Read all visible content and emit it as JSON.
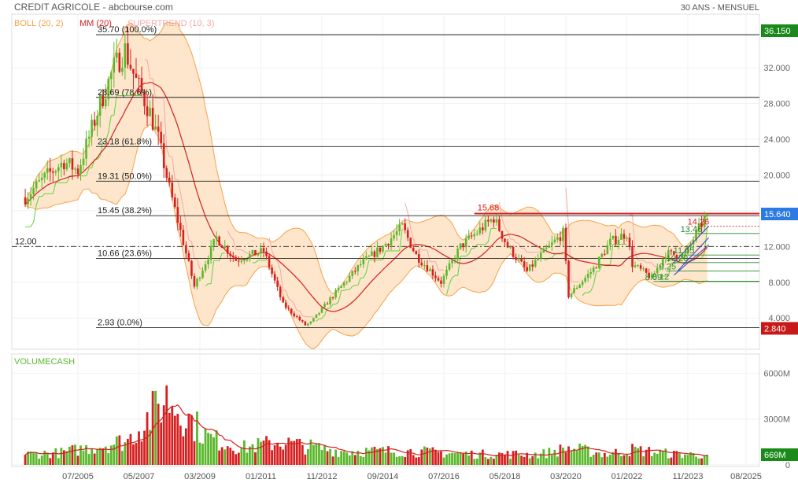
{
  "header": {
    "title": "CREDIT AGRICOLE - abcbourse.com",
    "period": "30 ANS - MENSUEL"
  },
  "legend": {
    "boll": "BOLL (20, 2)",
    "mm": "MM (20)",
    "supertrend": "SUPERTREND (10, 3)",
    "volume": "VOLUMECASH"
  },
  "colors": {
    "up": "#5cb82c",
    "down": "#d62020",
    "boll_band": "#f5a34a",
    "boll_fill": "#fde6cc",
    "mm": "#d62020",
    "supertrend_low": "#5cd43c",
    "supertrend_high": "#f3a9a9",
    "volume_ma": "#d62020",
    "last_price": "#2a8a2a",
    "min_price": "#c81818",
    "resistance": "#d62020",
    "channel": "#2a3fd6"
  },
  "chart_data": [
    {
      "type": "candlestick",
      "title": "CREDIT AGRICOLE - abcbourse.com",
      "subtitle": "30 ANS - MENSUEL",
      "x_ticks": [
        "07/2005",
        "05/2007",
        "03/2009",
        "01/2011",
        "11/2012",
        "09/2014",
        "07/2016",
        "05/2018",
        "03/2020",
        "01/2022",
        "11/2023",
        "08/2025"
      ],
      "y_ticks": [
        "4.000",
        "8.000",
        "12.000",
        "16.000",
        "20.000",
        "24.000",
        "28.000",
        "32.000"
      ],
      "ylim": [
        0.5,
        38
      ],
      "last_value": "15.640",
      "max_value": "36.150",
      "min_value": "2.840",
      "horizontal_levels": [
        {
          "label": "12.00",
          "value": 12.0
        }
      ],
      "fibonacci": [
        {
          "label": "35.70 (100.0%)",
          "value": 35.7
        },
        {
          "label": "28.69 (78.6%)",
          "value": 28.69
        },
        {
          "label": "23.18 (61.8%)",
          "value": 23.18
        },
        {
          "label": "19.31 (50.0%)",
          "value": 19.31
        },
        {
          "label": "15.45 (38.2%)",
          "value": 15.45
        },
        {
          "label": "10.66 (23.6%)",
          "value": 10.66
        },
        {
          "label": "2.93 (0.0%)",
          "value": 2.93
        }
      ],
      "resistance": {
        "label": "15.68",
        "value": 15.68,
        "from": "06/2017"
      },
      "annotations": [
        {
          "label": "14.26",
          "value": 14.26
        },
        {
          "label": "13.46",
          "value": 13.46
        },
        {
          "label": "11.05",
          "value": 11.05
        },
        {
          "label": "10.20",
          "value": 10.2
        },
        {
          "label": "9.25",
          "value": 9.25
        },
        {
          "label": "8.12",
          "value": 8.12
        },
        {
          "label": "8.09",
          "value": 8.09
        }
      ],
      "series": [
        {
          "name": "BOLL (20, 2)"
        },
        {
          "name": "MM (20)"
        },
        {
          "name": "SUPERTREND (10, 3)"
        }
      ],
      "close_anchors": [
        [
          "2003-12",
          17.5
        ],
        [
          "2004-08",
          20.0
        ],
        [
          "2005-02",
          21.5
        ],
        [
          "2005-07",
          20.5
        ],
        [
          "2006-03",
          28.0
        ],
        [
          "2006-08",
          32.0
        ],
        [
          "2006-12",
          34.0
        ],
        [
          "2007-04",
          30.5
        ],
        [
          "2007-09",
          27.0
        ],
        [
          "2007-12",
          24.0
        ],
        [
          "2008-04",
          18.5
        ],
        [
          "2008-09",
          12.5
        ],
        [
          "2009-01",
          7.5
        ],
        [
          "2009-09",
          13.0
        ],
        [
          "2010-04",
          10.5
        ],
        [
          "2011-02",
          11.5
        ],
        [
          "2011-09",
          5.5
        ],
        [
          "2012-05",
          3.2
        ],
        [
          "2012-07",
          3.5
        ],
        [
          "2013-03",
          6.5
        ],
        [
          "2014-01",
          10.0
        ],
        [
          "2014-09",
          12.0
        ],
        [
          "2015-04",
          14.2
        ],
        [
          "2015-09",
          11.0
        ],
        [
          "2016-06",
          8.0
        ],
        [
          "2017-01",
          12.0
        ],
        [
          "2018-01",
          15.2
        ],
        [
          "2018-06",
          12.0
        ],
        [
          "2019-01",
          9.2
        ],
        [
          "2019-06",
          11.0
        ],
        [
          "2020-02",
          13.5
        ],
        [
          "2020-04",
          6.5
        ],
        [
          "2021-01",
          9.5
        ],
        [
          "2021-07",
          12.5
        ],
        [
          "2022-01",
          13.5
        ],
        [
          "2022-03",
          10.0
        ],
        [
          "2022-10",
          8.5
        ],
        [
          "2023-03",
          11.2
        ],
        [
          "2023-10",
          11.0
        ],
        [
          "2024-03",
          14.0
        ],
        [
          "2024-06",
          15.64
        ]
      ]
    },
    {
      "type": "bar",
      "title": "VOLUMECASH",
      "y_ticks": [
        "0",
        "3000M",
        "6000M"
      ],
      "ylim": [
        0,
        7000
      ],
      "last_value": "669M",
      "unit": "M",
      "volume_anchors": [
        [
          "2003-12",
          700
        ],
        [
          "2005-01",
          800
        ],
        [
          "2006-01",
          1200
        ],
        [
          "2007-01",
          1600
        ],
        [
          "2007-10",
          3400
        ],
        [
          "2008-03",
          4400
        ],
        [
          "2008-10",
          3200
        ],
        [
          "2009-06",
          1800
        ],
        [
          "2010-06",
          1100
        ],
        [
          "2011-08",
          1500
        ],
        [
          "2012-06",
          1200
        ],
        [
          "2013-06",
          900
        ],
        [
          "2014-06",
          900
        ],
        [
          "2015-06",
          900
        ],
        [
          "2016-06",
          800
        ],
        [
          "2017-06",
          700
        ],
        [
          "2018-06",
          700
        ],
        [
          "2019-06",
          700
        ],
        [
          "2020-04",
          1100
        ],
        [
          "2021-06",
          700
        ],
        [
          "2022-03",
          1000
        ],
        [
          "2023-06",
          700
        ],
        [
          "2024-06",
          669
        ]
      ]
    }
  ]
}
